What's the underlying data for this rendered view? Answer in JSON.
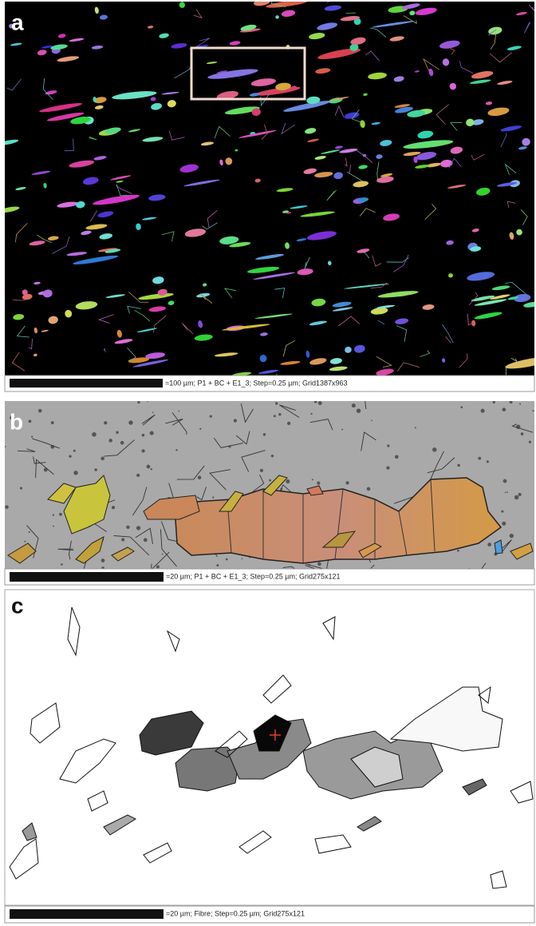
{
  "panels": [
    {
      "label": "a",
      "caption": "=100 µm; P1 + BC + E1_3; Step=0.25 µm; Grid1387x963"
    },
    {
      "label": "b",
      "caption": "=20 µm; P1 + BC + E1_3; Step=0.25 µm; Grid275x121"
    },
    {
      "label": "c",
      "caption": "=20 µm; Fibre; Step=0.25 µm; Grid275x121"
    }
  ]
}
